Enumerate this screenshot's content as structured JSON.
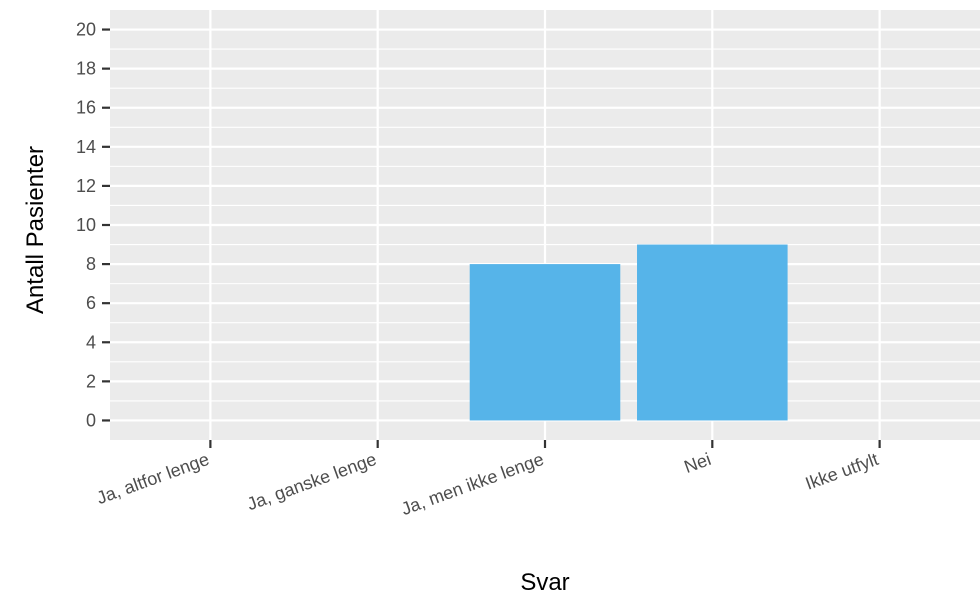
{
  "chart_data": {
    "type": "bar",
    "title": "",
    "xlabel": "Svar",
    "ylabel": "Antall Pasienter",
    "categories": [
      "Ja, altfor lenge",
      "Ja, ganske lenge",
      "Ja, men ikke lenge",
      "Nei",
      "Ikke utfylt"
    ],
    "values": [
      0,
      0,
      8,
      9,
      0
    ],
    "ylim": [
      -1,
      21
    ],
    "yticks": [
      0,
      2,
      4,
      6,
      8,
      10,
      12,
      14,
      16,
      18,
      20
    ],
    "grid": true,
    "legend": "none",
    "colors": {
      "bar": "#56B4E9",
      "panel": "#EBEBEB",
      "grid": "#FFFFFF",
      "tick": "#333333"
    }
  }
}
